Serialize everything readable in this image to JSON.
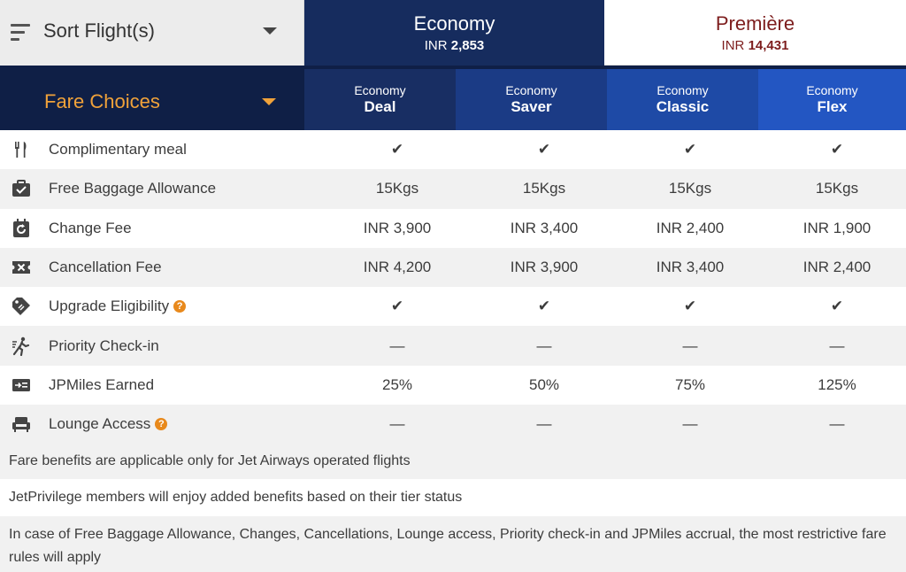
{
  "sort": {
    "label": "Sort Flight(s)"
  },
  "cabins": [
    {
      "name": "Economy",
      "currency": "INR",
      "price": "2,853"
    },
    {
      "name": "Première",
      "currency": "INR",
      "price": "14,431"
    }
  ],
  "fare_choices": {
    "label": "Fare Choices"
  },
  "fares": [
    {
      "cabin": "Economy",
      "name": "Deal"
    },
    {
      "cabin": "Economy",
      "name": "Saver"
    },
    {
      "cabin": "Economy",
      "name": "Classic"
    },
    {
      "cabin": "Economy",
      "name": "Flex"
    }
  ],
  "features": [
    {
      "icon": "meal-icon",
      "label": "Complimentary meal",
      "help": false,
      "values": [
        "✔",
        "✔",
        "✔",
        "✔"
      ]
    },
    {
      "icon": "baggage-icon",
      "label": "Free Baggage Allowance",
      "help": false,
      "values": [
        "15Kgs",
        "15Kgs",
        "15Kgs",
        "15Kgs"
      ]
    },
    {
      "icon": "change-fee-icon",
      "label": "Change Fee",
      "help": false,
      "values": [
        "INR 3,900",
        "INR 3,400",
        "INR 2,400",
        "INR 1,900"
      ]
    },
    {
      "icon": "cancellation-icon",
      "label": "Cancellation Fee",
      "help": false,
      "values": [
        "INR 4,200",
        "INR 3,900",
        "INR 3,400",
        "INR 2,400"
      ]
    },
    {
      "icon": "upgrade-tag-icon",
      "label": "Upgrade Eligibility",
      "help": true,
      "values": [
        "✔",
        "✔",
        "✔",
        "✔"
      ]
    },
    {
      "icon": "priority-checkin-icon",
      "label": "Priority Check-in",
      "help": false,
      "values": [
        "—",
        "—",
        "—",
        "—"
      ]
    },
    {
      "icon": "jpmiles-icon",
      "label": "JPMiles Earned",
      "help": false,
      "values": [
        "25%",
        "50%",
        "75%",
        "125%"
      ]
    },
    {
      "icon": "lounge-icon",
      "label": "Lounge Access",
      "help": true,
      "values": [
        "—",
        "—",
        "—",
        "—"
      ]
    }
  ],
  "help_symbol": "?",
  "notes": [
    "Fare benefits are applicable only for Jet Airways operated flights",
    "JetPrivilege members will enjoy added benefits based on their tier status",
    "In case of Free Baggage Allowance, Changes, Cancellations, Lounge access, Priority check-in and JPMiles accrual, the most restrictive fare rules will apply"
  ],
  "colors": {
    "economy_header": "#162c5e",
    "premiere_text": "#7d1d1d",
    "fare_choices_text": "#f0a23a",
    "help_badge": "#e8891c"
  }
}
